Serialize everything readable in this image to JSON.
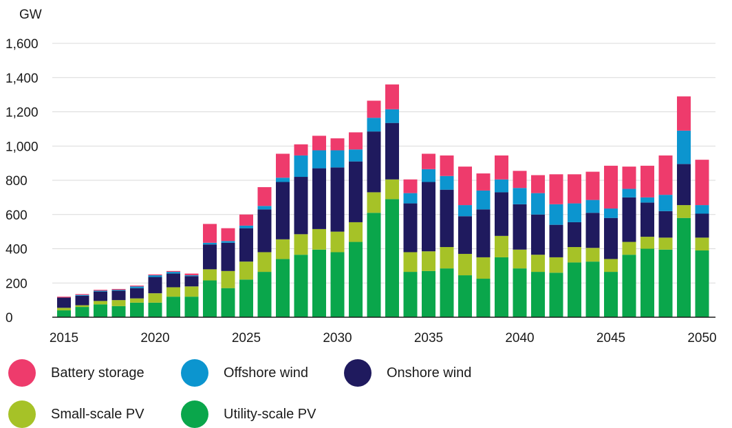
{
  "chart_data": {
    "type": "bar",
    "stacked": true,
    "unit_label": "GW",
    "ylim": [
      0,
      1600
    ],
    "yticks": [
      0,
      200,
      400,
      600,
      800,
      1000,
      1200,
      1400,
      1600
    ],
    "ytick_labels": [
      "0",
      "200",
      "400",
      "600",
      "800",
      "1,000",
      "1,200",
      "1,400",
      "1,600"
    ],
    "grid": true,
    "legend_position": "bottom",
    "categories": [
      2015,
      2016,
      2017,
      2018,
      2019,
      2020,
      2021,
      2022,
      2023,
      2024,
      2025,
      2026,
      2027,
      2028,
      2029,
      2030,
      2031,
      2032,
      2033,
      2034,
      2035,
      2036,
      2037,
      2038,
      2039,
      2040,
      2041,
      2042,
      2043,
      2044,
      2045,
      2046,
      2047,
      2048,
      2049,
      2050
    ],
    "xtick_labels": [
      "2015",
      "2020",
      "2025",
      "2030",
      "2035",
      "2040",
      "2045",
      "2050"
    ],
    "series": [
      {
        "name": "Utility-scale PV",
        "color": "#0aa64b",
        "values": [
          40,
          60,
          75,
          65,
          85,
          85,
          120,
          120,
          215,
          170,
          220,
          265,
          340,
          365,
          395,
          380,
          440,
          610,
          690,
          265,
          270,
          285,
          245,
          225,
          350,
          285,
          265,
          260,
          320,
          325,
          265,
          365,
          400,
          395,
          580,
          390
        ]
      },
      {
        "name": "Small-scale PV",
        "color": "#a6c227",
        "values": [
          15,
          10,
          20,
          35,
          25,
          55,
          55,
          60,
          65,
          100,
          105,
          115,
          115,
          120,
          120,
          120,
          115,
          120,
          115,
          115,
          115,
          125,
          125,
          125,
          125,
          110,
          100,
          90,
          90,
          80,
          75,
          75,
          70,
          70,
          75,
          75
        ]
      },
      {
        "name": "Onshore wind",
        "color": "#1f1a5e",
        "values": [
          60,
          55,
          55,
          55,
          60,
          95,
          80,
          60,
          145,
          165,
          195,
          250,
          335,
          335,
          355,
          375,
          355,
          355,
          330,
          285,
          405,
          335,
          220,
          280,
          255,
          265,
          235,
          190,
          145,
          205,
          240,
          260,
          200,
          155,
          240,
          140
        ]
      },
      {
        "name": "Offshore wind",
        "color": "#0c95cf",
        "values": [
          0,
          5,
          5,
          5,
          10,
          10,
          10,
          5,
          10,
          10,
          15,
          20,
          25,
          125,
          105,
          100,
          70,
          80,
          80,
          60,
          75,
          80,
          65,
          110,
          75,
          95,
          125,
          120,
          110,
          75,
          55,
          50,
          30,
          95,
          195,
          50
        ]
      },
      {
        "name": "Battery storage",
        "color": "#ee3b6c",
        "values": [
          5,
          5,
          5,
          5,
          5,
          5,
          5,
          10,
          110,
          75,
          65,
          110,
          140,
          65,
          85,
          70,
          100,
          100,
          145,
          80,
          90,
          120,
          225,
          100,
          140,
          100,
          105,
          175,
          170,
          165,
          250,
          130,
          185,
          230,
          200,
          265
        ]
      }
    ],
    "legend": [
      {
        "label": "Battery storage",
        "color": "#ee3b6c"
      },
      {
        "label": "Offshore wind",
        "color": "#0c95cf"
      },
      {
        "label": "Onshore wind",
        "color": "#1f1a5e"
      },
      {
        "label": "Small-scale PV",
        "color": "#a6c227"
      },
      {
        "label": "Utility-scale PV",
        "color": "#0aa64b"
      }
    ]
  }
}
